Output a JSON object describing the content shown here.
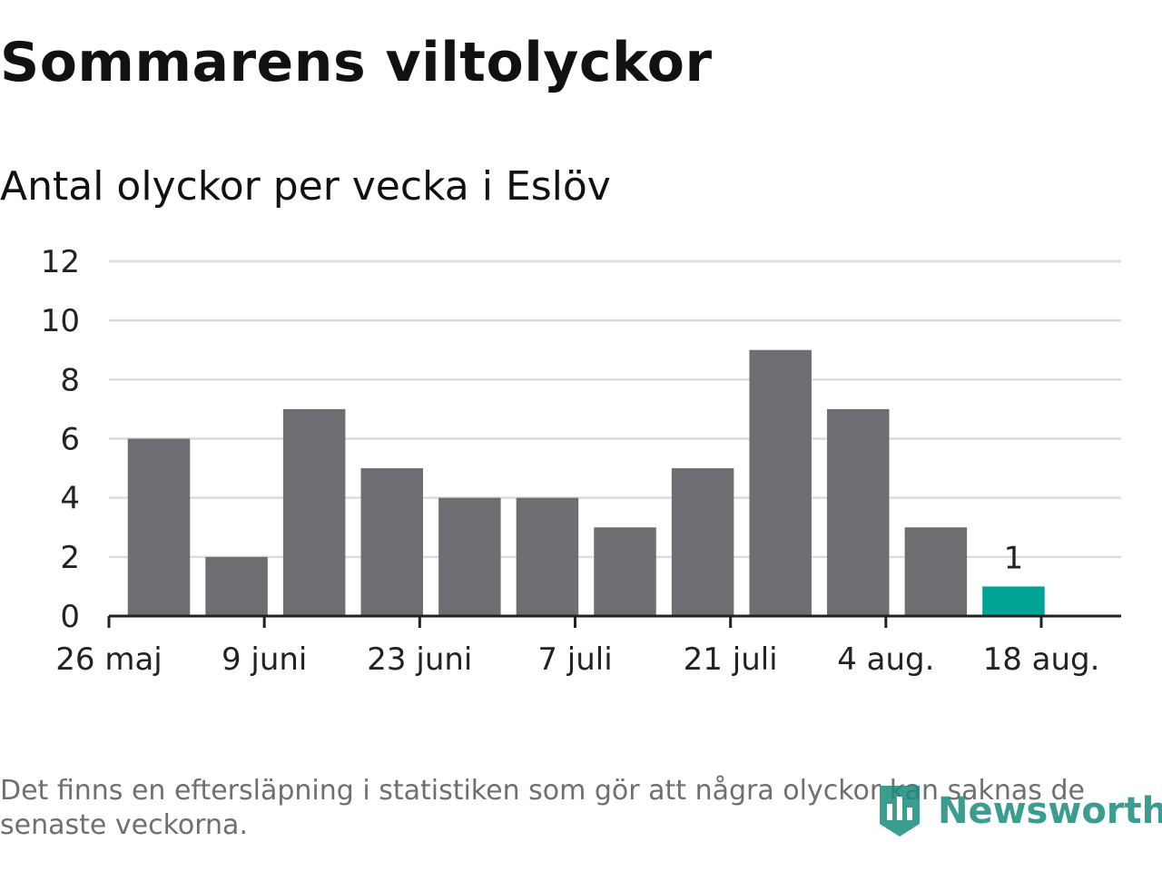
{
  "title": "Sommarens viltolyckor",
  "subtitle": "Antal olyckor per vecka i Eslöv",
  "note": "Det finns en eftersläpning i statistiken som gör att några olyckor kan saknas de senaste veckorna.",
  "brand": {
    "name": "Newsworthy",
    "icon": "newsworthy-logo-icon"
  },
  "colors": {
    "bar": "#6e6d72",
    "highlight": "#00a396",
    "grid": "#dcdcdc",
    "axis": "#222222",
    "text": "#222222",
    "note": "#6f6f6f"
  },
  "chart_data": {
    "type": "bar",
    "title": "Sommarens viltolyckor",
    "subtitle": "Antal olyckor per vecka i Eslöv",
    "x": [
      "2019-05-27",
      "2019-06-03",
      "2019-06-10",
      "2019-06-17",
      "2019-06-24",
      "2019-07-01",
      "2019-07-08",
      "2019-07-15",
      "2019-07-22",
      "2019-07-29",
      "2019-08-05",
      "2019-08-12"
    ],
    "values": [
      6,
      2,
      7,
      5,
      4,
      4,
      3,
      5,
      9,
      7,
      3,
      1
    ],
    "highlight_last": true,
    "data_labels": [
      {
        "x": "2019-08-12",
        "text": "1"
      }
    ],
    "x_ticks": [
      {
        "x": "2019-05-26",
        "label": "26 maj"
      },
      {
        "x": "2019-06-09",
        "label": "9 juni"
      },
      {
        "x": "2019-06-23",
        "label": "23 juni"
      },
      {
        "x": "2019-07-07",
        "label": "7 juli"
      },
      {
        "x": "2019-07-21",
        "label": "21 juli"
      },
      {
        "x": "2019-08-04",
        "label": "4 aug."
      },
      {
        "x": "2019-08-18",
        "label": "18 aug."
      }
    ],
    "y_ticks": [
      0,
      2,
      4,
      6,
      8,
      10,
      12
    ],
    "ylim": [
      0,
      12
    ],
    "grid": true,
    "legend": "none"
  }
}
